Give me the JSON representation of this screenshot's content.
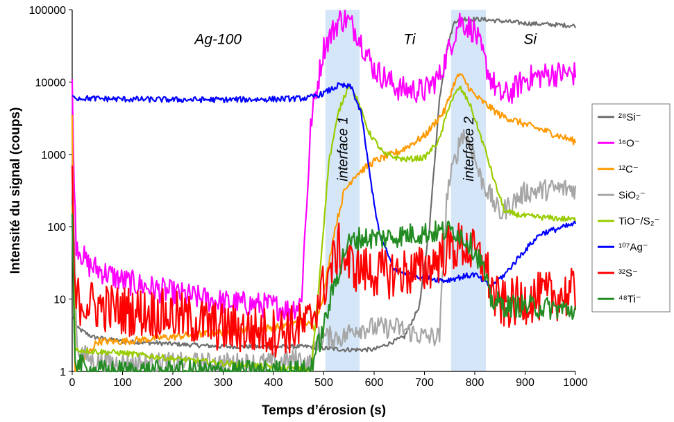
{
  "chart_data": {
    "type": "line",
    "xlabel": "Temps d’érosion (s)",
    "ylabel": "Intensité du signal (coups)",
    "xlim": [
      0,
      1000
    ],
    "ylim": [
      1,
      100000
    ],
    "yscale": "log",
    "x_ticks": [
      "0",
      "100",
      "200",
      "300",
      "400",
      "500",
      "600",
      "700",
      "800",
      "900",
      "1000"
    ],
    "y_ticks": [
      "1",
      "10",
      "100",
      "1000",
      "10000",
      "100000"
    ],
    "legend_position": "right",
    "regions": [
      {
        "label": "Ag-100",
        "x": 290,
        "y": 40000
      },
      {
        "label": "Ti",
        "x": 670,
        "y": 40000
      },
      {
        "label": "Si",
        "x": 910,
        "y": 40000
      }
    ],
    "interfaces": [
      {
        "label": "interface 1",
        "x_start": 503,
        "x_end": 571
      },
      {
        "label": "interface 2",
        "x_start": 753,
        "x_end": 822
      }
    ],
    "series": [
      {
        "name": "²⁸Si⁻",
        "color": "#6e6e6e",
        "noise": 0.03,
        "points": [
          [
            0,
            6
          ],
          [
            10,
            4
          ],
          [
            40,
            3
          ],
          [
            100,
            2.6
          ],
          [
            200,
            2.4
          ],
          [
            300,
            2.2
          ],
          [
            400,
            2.2
          ],
          [
            470,
            2.2
          ],
          [
            500,
            2.1
          ],
          [
            540,
            2
          ],
          [
            600,
            2
          ],
          [
            660,
            3
          ],
          [
            690,
            8
          ],
          [
            710,
            100
          ],
          [
            730,
            6000
          ],
          [
            745,
            30000
          ],
          [
            760,
            70000
          ],
          [
            780,
            75000
          ],
          [
            820,
            73000
          ],
          [
            900,
            65000
          ],
          [
            1000,
            60000
          ]
        ]
      },
      {
        "name": "¹⁶O⁻",
        "color": "#ff00ff",
        "noise": 0.18,
        "points": [
          [
            0,
            11000
          ],
          [
            3,
            500
          ],
          [
            8,
            60
          ],
          [
            30,
            30
          ],
          [
            100,
            18
          ],
          [
            200,
            12
          ],
          [
            300,
            9
          ],
          [
            400,
            8
          ],
          [
            430,
            7
          ],
          [
            455,
            9
          ],
          [
            475,
            3000
          ],
          [
            500,
            30000
          ],
          [
            530,
            72000
          ],
          [
            545,
            74000
          ],
          [
            565,
            50000
          ],
          [
            600,
            15000
          ],
          [
            650,
            8000
          ],
          [
            700,
            7500
          ],
          [
            730,
            12000
          ],
          [
            750,
            30000
          ],
          [
            770,
            72000
          ],
          [
            800,
            50000
          ],
          [
            830,
            12000
          ],
          [
            850,
            6500
          ],
          [
            870,
            7000
          ],
          [
            900,
            11000
          ],
          [
            950,
            13000
          ],
          [
            1000,
            13000
          ]
        ]
      },
      {
        "name": "¹²C⁻",
        "color": "#ff9900",
        "noise": 0.05,
        "points": [
          [
            0,
            3500
          ],
          [
            5,
            1
          ],
          [
            50,
            2.6
          ],
          [
            100,
            2.6
          ],
          [
            300,
            3.5
          ],
          [
            420,
            4.2
          ],
          [
            460,
            5
          ],
          [
            480,
            4
          ],
          [
            500,
            12
          ],
          [
            520,
            80
          ],
          [
            540,
            300
          ],
          [
            560,
            500
          ],
          [
            600,
            800
          ],
          [
            650,
            1100
          ],
          [
            700,
            1800
          ],
          [
            740,
            4000
          ],
          [
            760,
            10000
          ],
          [
            770,
            13000
          ],
          [
            800,
            6500
          ],
          [
            850,
            3500
          ],
          [
            900,
            2600
          ],
          [
            950,
            2000
          ],
          [
            1000,
            1500
          ]
        ]
      },
      {
        "name": "SiO₂⁻",
        "color": "#a6a6a6",
        "noise": 0.15,
        "points": [
          [
            0,
            600
          ],
          [
            10,
            2
          ],
          [
            40,
            1.4
          ],
          [
            100,
            1.3
          ],
          [
            400,
            1.3
          ],
          [
            450,
            1.5
          ],
          [
            470,
            1.2
          ],
          [
            490,
            3
          ],
          [
            510,
            3
          ],
          [
            540,
            3
          ],
          [
            560,
            4
          ],
          [
            600,
            4
          ],
          [
            650,
            4
          ],
          [
            700,
            3
          ],
          [
            730,
            3
          ],
          [
            745,
            300
          ],
          [
            760,
            800
          ],
          [
            775,
            2000
          ],
          [
            790,
            1500
          ],
          [
            810,
            500
          ],
          [
            850,
            150
          ],
          [
            870,
            200
          ],
          [
            900,
            300
          ],
          [
            950,
            330
          ],
          [
            1000,
            340
          ]
        ]
      },
      {
        "name": "TiO⁻/S₂⁻",
        "color": "#99cc00",
        "noise": 0.04,
        "points": [
          [
            0,
            200
          ],
          [
            6,
            2
          ],
          [
            40,
            1.9
          ],
          [
            100,
            1.8
          ],
          [
            200,
            1.5
          ],
          [
            300,
            1.3
          ],
          [
            400,
            1.15
          ],
          [
            460,
            1.05
          ],
          [
            475,
            1
          ],
          [
            490,
            15
          ],
          [
            510,
            800
          ],
          [
            530,
            4000
          ],
          [
            550,
            9500
          ],
          [
            565,
            6000
          ],
          [
            590,
            2000
          ],
          [
            620,
            1000
          ],
          [
            660,
            850
          ],
          [
            700,
            900
          ],
          [
            730,
            1600
          ],
          [
            750,
            5000
          ],
          [
            770,
            8500
          ],
          [
            790,
            5000
          ],
          [
            820,
            1200
          ],
          [
            840,
            400
          ],
          [
            860,
            160
          ],
          [
            900,
            140
          ],
          [
            1000,
            125
          ]
        ]
      },
      {
        "name": "¹⁰⁷Ag⁻",
        "color": "#0000ff",
        "noise": 0.04,
        "points": [
          [
            0,
            6500
          ],
          [
            10,
            6000
          ],
          [
            100,
            5800
          ],
          [
            200,
            5700
          ],
          [
            300,
            5700
          ],
          [
            400,
            5800
          ],
          [
            470,
            6000
          ],
          [
            500,
            7000
          ],
          [
            530,
            9000
          ],
          [
            555,
            8500
          ],
          [
            575,
            3500
          ],
          [
            590,
            600
          ],
          [
            610,
            80
          ],
          [
            640,
            25
          ],
          [
            700,
            20
          ],
          [
            740,
            18
          ],
          [
            770,
            20
          ],
          [
            800,
            22
          ],
          [
            830,
            15
          ],
          [
            860,
            22
          ],
          [
            890,
            40
          ],
          [
            930,
            80
          ],
          [
            1000,
            110
          ]
        ]
      },
      {
        "name": "³²S⁻",
        "color": "#ff0000",
        "noise": 0.35,
        "points": [
          [
            0,
            700
          ],
          [
            5,
            10
          ],
          [
            50,
            8
          ],
          [
            100,
            7
          ],
          [
            200,
            6
          ],
          [
            300,
            4
          ],
          [
            400,
            3.5
          ],
          [
            450,
            4
          ],
          [
            470,
            4.5
          ],
          [
            500,
            15
          ],
          [
            530,
            50
          ],
          [
            550,
            30
          ],
          [
            580,
            25
          ],
          [
            620,
            22
          ],
          [
            700,
            25
          ],
          [
            750,
            50
          ],
          [
            780,
            55
          ],
          [
            820,
            30
          ],
          [
            840,
            10
          ],
          [
            860,
            8
          ],
          [
            900,
            10
          ],
          [
            1000,
            12
          ]
        ]
      },
      {
        "name": "⁴⁸Ti⁻",
        "color": "#228b22",
        "noise": 0.16,
        "points": [
          [
            0,
            150
          ],
          [
            5,
            1.5
          ],
          [
            30,
            1
          ],
          [
            470,
            1
          ],
          [
            495,
            3
          ],
          [
            520,
            15
          ],
          [
            545,
            55
          ],
          [
            570,
            70
          ],
          [
            620,
            70
          ],
          [
            680,
            80
          ],
          [
            730,
            85
          ],
          [
            760,
            90
          ],
          [
            790,
            60
          ],
          [
            815,
            30
          ],
          [
            830,
            10
          ],
          [
            860,
            8
          ],
          [
            900,
            8
          ],
          [
            1000,
            7
          ]
        ]
      }
    ]
  }
}
